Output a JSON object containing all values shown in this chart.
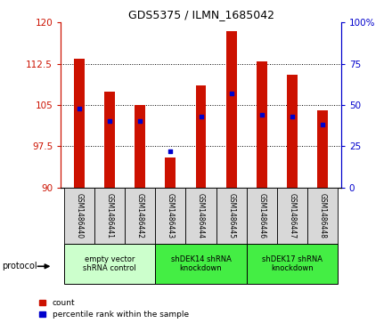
{
  "title": "GDS5375 / ILMN_1685042",
  "samples": [
    "GSM1486440",
    "GSM1486441",
    "GSM1486442",
    "GSM1486443",
    "GSM1486444",
    "GSM1486445",
    "GSM1486446",
    "GSM1486447",
    "GSM1486448"
  ],
  "count_values": [
    113.5,
    107.5,
    105.0,
    95.5,
    108.5,
    118.5,
    113.0,
    110.5,
    104.0
  ],
  "percentile_values": [
    48.0,
    40.0,
    40.0,
    22.0,
    43.0,
    57.0,
    44.0,
    43.0,
    38.0
  ],
  "bar_bottom": 90,
  "bar_color": "#cc1100",
  "percentile_color": "#0000cc",
  "ylim_left": [
    90,
    120
  ],
  "ylim_right": [
    0,
    100
  ],
  "yticks_left": [
    90,
    97.5,
    105,
    112.5,
    120
  ],
  "yticks_right": [
    0,
    25,
    50,
    75,
    100
  ],
  "ytick_labels_left": [
    "90",
    "97.5",
    "105",
    "112.5",
    "120"
  ],
  "ytick_labels_right": [
    "0",
    "25",
    "50",
    "75",
    "100%"
  ],
  "groups": [
    {
      "label": "empty vector\nshRNA control",
      "start": 0,
      "end": 3,
      "color": "#ccffcc"
    },
    {
      "label": "shDEK14 shRNA\nknockdown",
      "start": 3,
      "end": 6,
      "color": "#44ee44"
    },
    {
      "label": "shDEK17 shRNA\nknockdown",
      "start": 6,
      "end": 9,
      "color": "#44ee44"
    }
  ],
  "protocol_label": "protocol",
  "legend_count_label": "count",
  "legend_percentile_label": "percentile rank within the sample",
  "bar_width": 0.35,
  "sample_cell_color": "#d8d8d8"
}
